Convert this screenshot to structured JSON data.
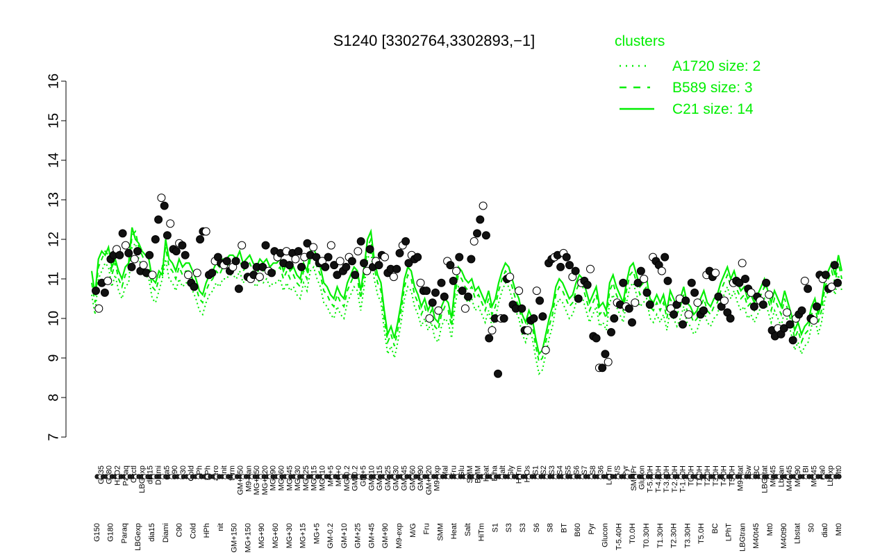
{
  "chart_data": {
    "type": "line",
    "title": "S1240 [3302764,3302893,−1]",
    "xlabel": "",
    "ylabel": "",
    "ylim": [
      7,
      16
    ],
    "yticks": [
      7,
      8,
      9,
      10,
      11,
      12,
      13,
      14,
      15,
      16
    ],
    "grid": false,
    "legend": {
      "title": "clusters",
      "placement": "top-right",
      "color": "#00ee00",
      "entries": [
        {
          "label": "A1720 size: 2",
          "style": "dotted"
        },
        {
          "label": "B589 size: 3",
          "style": "dashed"
        },
        {
          "label": "C21 size: 14",
          "style": "solid"
        }
      ]
    },
    "x_labels_upper": [
      "G135",
      "G180",
      "H2O2",
      "Paraq",
      "Oxctl",
      "LBGexp",
      "dia15",
      "Diami",
      "dia5",
      "C90",
      "C30",
      "Cold",
      "LPh",
      "HPh",
      "aero",
      "nit",
      "ferm",
      "GM+150",
      "M9-tran",
      "MG+150",
      "MG+120",
      "MG+90",
      "MG+60",
      "MG+45",
      "MG+30",
      "MG+25",
      "MG+15",
      "MG+10",
      "MG+5",
      "MG+0",
      "MG-0.2",
      "GM-0.2",
      "GM+5",
      "GM+10",
      "GM+15",
      "GM+25",
      "GM+30",
      "GM+45",
      "GM+60",
      "GM+90",
      "GM+120",
      "M9-exp",
      "Mal",
      "Fru",
      "Glu",
      "SMM",
      "BMM",
      "Heat",
      "Etha",
      "Salt",
      "Gly",
      "HiTm",
      "HiOs",
      "S1",
      "S2",
      "S3",
      "S4",
      "S5",
      "S6",
      "S7",
      "S8",
      "B36",
      "LoTm",
      "G/S",
      "Pyr",
      "SMMPr",
      "Glucon",
      "T-5.40H",
      "T-4.40H",
      "T-3.40H",
      "T-2.40H",
      "T-1.40H",
      "T0.0H",
      "T1.0H",
      "T2.0H",
      "T3.0H",
      "T4.0H",
      "T5.0H",
      "M9-stat",
      "Sw",
      "BC",
      "LBGstat",
      "M0t45",
      "Lbtran",
      "M40t45",
      "M0t90",
      "BI",
      "M0t45",
      "dia0",
      "Lbexp",
      "Mt0"
    ],
    "x_labels_lower": [
      "G150",
      "G180",
      "Paraq",
      "LBGexp",
      "dia15",
      "Diami",
      "C90",
      "Cold",
      "HPh",
      "nit",
      "GM+150",
      "MG+150",
      "MG+90",
      "MG+60",
      "MG+30",
      "MG+15",
      "MG+5",
      "GM-0.2",
      "GM+10",
      "GM+25",
      "GM+45",
      "GM+90",
      "M9-exp",
      "M/G",
      "Fru",
      "SMM",
      "Heat",
      "Salt",
      "HiTm",
      "S1",
      "S3",
      "S3",
      "S6",
      "S8",
      "BT",
      "B60",
      "Pyr",
      "Glucon",
      "T-5.40H",
      "T0.0H",
      "T0.30H",
      "T1.30H",
      "T2.30H",
      "T3.30H",
      "T5.0H",
      "BC",
      "LPhT",
      "LBGtran",
      "M40t45",
      "Mt0",
      "M40t90",
      "Lbstat",
      "S0",
      "dia0",
      "Mt0"
    ],
    "series": [
      {
        "style": "solid",
        "values": [
          11.2,
          10.6,
          11.5,
          11.7,
          11.6,
          11.8,
          11.3,
          11.5,
          11.2,
          11.0,
          11.3,
          11.4,
          12.3,
          12.0,
          11.9,
          11.7,
          11.6,
          11.5,
          11.0,
          10.9,
          11.2,
          11.1,
          12.0,
          11.5,
          11.4,
          11.2,
          11.5,
          11.3,
          11.4,
          11.4,
          11.2,
          11.0,
          10.7,
          10.6,
          10.9,
          11.1,
          11.2,
          11.4,
          11.3,
          11.5,
          11.5,
          11.6,
          11.6,
          11.5,
          11.7,
          11.4,
          11.5,
          11.6,
          11.4,
          11.3,
          11.5,
          11.4,
          11.5,
          11.3,
          11.4,
          11.4,
          11.5,
          11.2,
          11.4,
          11.2,
          11.3,
          11.1,
          11.0,
          11.4,
          11.2,
          11.7,
          11.8,
          11.5,
          11.3,
          10.9,
          10.8,
          10.6,
          10.5,
          10.8,
          10.6,
          10.5,
          10.9,
          11.1,
          11.3,
          11.2,
          10.7,
          11.3,
          12.0,
          12.2,
          11.5,
          11.1,
          10.9,
          10.2,
          9.6,
          9.8,
          9.5,
          9.9,
          10.4,
          11.0,
          11.3,
          11.2,
          10.8,
          10.6,
          10.3,
          10.5,
          10.2,
          10.4,
          10.0,
          9.9,
          10.3,
          10.5,
          10.4,
          10.0,
          10.8,
          11.3,
          11.2,
          11.0,
          10.9,
          11.0,
          10.7,
          10.8,
          10.6,
          10.4,
          10.7,
          10.3,
          10.5,
          10.9,
          11.2,
          11.4,
          11.3,
          11.0,
          10.7,
          10.5,
          10.1,
          9.9,
          10.2,
          10.0,
          9.5,
          9.1,
          9.2,
          9.6,
          10.0,
          10.3,
          10.8,
          11.0,
          10.9,
          10.7,
          10.5,
          10.6,
          10.9,
          11.1,
          11.0,
          10.7,
          10.4,
          10.6,
          10.8,
          10.3,
          10.4,
          10.2,
          10.9,
          11.1,
          10.8,
          10.6,
          10.4,
          10.9,
          11.3,
          11.4,
          11.1,
          10.8,
          10.9,
          11.0,
          10.5,
          10.4,
          10.6,
          10.4,
          10.6,
          10.2,
          10.7,
          10.5,
          10.3,
          10.5,
          10.8,
          10.4,
          10.3,
          10.1,
          10.2,
          10.5,
          10.7,
          10.4,
          10.3,
          10.5,
          10.6,
          10.9,
          11.1,
          11.3,
          11.0,
          11.2,
          10.9,
          10.7,
          10.8,
          10.5,
          10.6,
          10.4,
          10.6,
          10.8,
          11.0,
          10.7,
          10.4,
          10.7,
          10.5,
          10.3,
          10.7,
          10.4,
          10.1,
          9.7,
          9.9,
          9.6,
          9.8,
          9.9,
          10.3,
          10.5,
          10.1,
          10.4,
          11.0,
          11.2,
          11.4,
          11.1,
          11.6,
          11.2
        ]
      },
      {
        "style": "dashed",
        "values": [
          10.9,
          10.4,
          11.3,
          11.5,
          11.7,
          11.6,
          11.1,
          11.4,
          11.0,
          10.8,
          11.1,
          11.2,
          12.1,
          12.2,
          11.8,
          11.6,
          11.4,
          11.3,
          10.8,
          10.7,
          11.0,
          11.3,
          11.8,
          11.3,
          11.2,
          11.0,
          11.3,
          11.1,
          11.2,
          11.2,
          11.0,
          10.8,
          10.5,
          10.4,
          10.7,
          10.9,
          11.0,
          11.2,
          11.1,
          11.3,
          11.3,
          11.4,
          11.4,
          11.3,
          11.5,
          11.2,
          11.3,
          11.4,
          11.2,
          11.1,
          11.3,
          11.2,
          11.3,
          11.1,
          11.2,
          11.2,
          11.3,
          11.0,
          11.2,
          11.0,
          11.1,
          10.9,
          10.8,
          11.2,
          11.0,
          11.5,
          11.6,
          11.3,
          11.1,
          10.7,
          10.6,
          10.4,
          10.3,
          10.6,
          10.4,
          10.3,
          10.7,
          10.9,
          11.1,
          11.0,
          10.5,
          11.1,
          11.8,
          12.0,
          11.3,
          10.9,
          10.7,
          10.0,
          9.4,
          9.6,
          9.3,
          9.7,
          10.2,
          10.8,
          11.1,
          11.0,
          10.6,
          10.4,
          10.1,
          10.3,
          10.0,
          10.2,
          9.8,
          9.7,
          10.1,
          10.3,
          10.2,
          9.8,
          10.6,
          11.1,
          11.0,
          10.8,
          10.7,
          10.8,
          10.5,
          10.6,
          10.4,
          10.2,
          10.5,
          10.1,
          10.3,
          10.7,
          11.0,
          11.2,
          11.1,
          10.8,
          10.5,
          10.3,
          9.9,
          9.7,
          10.0,
          9.8,
          9.3,
          8.9,
          9.0,
          9.4,
          9.8,
          10.1,
          10.6,
          10.8,
          10.7,
          10.5,
          10.3,
          10.4,
          10.7,
          10.9,
          10.8,
          10.5,
          10.2,
          10.4,
          10.6,
          10.1,
          10.2,
          10.0,
          10.7,
          10.9,
          10.6,
          10.4,
          10.2,
          10.7,
          11.1,
          11.2,
          10.9,
          10.6,
          10.7,
          10.8,
          10.3,
          10.2,
          10.4,
          10.2,
          10.4,
          10.0,
          10.5,
          10.3,
          10.1,
          10.3,
          10.6,
          10.2,
          10.1,
          9.9,
          10.0,
          10.3,
          10.5,
          10.2,
          10.1,
          10.3,
          10.4,
          10.7,
          10.9,
          11.1,
          10.8,
          11.0,
          10.7,
          10.5,
          10.6,
          10.3,
          10.4,
          10.2,
          10.4,
          10.6,
          10.8,
          10.5,
          10.2,
          10.5,
          10.3,
          10.1,
          10.5,
          10.2,
          9.9,
          9.5,
          9.7,
          9.4,
          9.6,
          9.7,
          10.1,
          10.3,
          9.9,
          10.2,
          10.8,
          11.0,
          11.2,
          10.9,
          11.4,
          11.0
        ]
      },
      {
        "style": "dotted",
        "values": [
          10.6,
          10.1,
          11.0,
          11.2,
          11.4,
          11.3,
          10.8,
          11.1,
          10.7,
          10.5,
          10.8,
          10.9,
          11.8,
          11.9,
          11.5,
          11.3,
          11.1,
          11.0,
          10.5,
          10.4,
          10.7,
          11.0,
          11.5,
          11.0,
          10.9,
          10.7,
          11.0,
          10.8,
          10.9,
          10.9,
          10.7,
          10.5,
          10.2,
          10.1,
          10.4,
          10.6,
          10.7,
          10.9,
          10.8,
          11.0,
          11.0,
          11.1,
          11.1,
          11.0,
          11.2,
          10.9,
          11.0,
          11.1,
          10.9,
          10.8,
          11.0,
          10.9,
          11.0,
          10.8,
          10.9,
          10.9,
          11.0,
          10.7,
          10.9,
          10.7,
          10.8,
          10.6,
          10.5,
          10.9,
          10.7,
          11.2,
          11.3,
          11.0,
          10.8,
          10.4,
          10.3,
          10.1,
          10.0,
          10.3,
          10.1,
          10.0,
          10.4,
          10.6,
          10.8,
          10.7,
          10.2,
          10.8,
          11.5,
          11.7,
          11.0,
          10.6,
          10.4,
          9.7,
          9.1,
          9.3,
          9.0,
          9.4,
          9.9,
          10.5,
          10.8,
          10.7,
          10.3,
          10.1,
          9.8,
          10.0,
          9.7,
          9.9,
          9.5,
          9.4,
          9.8,
          10.0,
          9.9,
          9.5,
          10.3,
          10.8,
          10.7,
          10.5,
          10.4,
          10.5,
          10.2,
          10.3,
          10.1,
          9.9,
          10.2,
          9.8,
          10.0,
          10.4,
          10.7,
          10.9,
          10.8,
          10.5,
          10.2,
          10.0,
          9.6,
          9.4,
          9.7,
          9.5,
          9.0,
          8.6,
          8.7,
          9.1,
          9.5,
          9.8,
          10.3,
          10.5,
          10.4,
          10.2,
          10.0,
          10.1,
          10.4,
          10.6,
          10.5,
          10.2,
          9.9,
          10.1,
          10.3,
          9.8,
          9.9,
          9.7,
          10.4,
          10.6,
          10.3,
          10.1,
          9.9,
          10.4,
          10.8,
          10.9,
          10.6,
          10.3,
          10.4,
          10.5,
          10.0,
          9.9,
          10.1,
          9.9,
          10.1,
          9.7,
          10.2,
          10.0,
          9.8,
          10.0,
          10.3,
          9.9,
          9.8,
          9.6,
          9.7,
          10.0,
          10.2,
          9.9,
          9.8,
          10.0,
          10.1,
          10.4,
          10.6,
          10.8,
          10.5,
          10.7,
          10.4,
          10.2,
          10.3,
          10.0,
          10.1,
          9.9,
          10.1,
          10.3,
          10.5,
          10.2,
          9.9,
          10.2,
          10.0,
          9.8,
          10.2,
          9.9,
          9.6,
          9.2,
          9.4,
          9.1,
          9.3,
          9.4,
          9.8,
          10.0,
          9.6,
          9.9,
          10.5,
          10.7,
          10.9,
          10.6,
          11.1,
          10.7
        ]
      }
    ],
    "points": [
      10.7,
      10.25,
      10.9,
      10.65,
      10.95,
      11.5,
      11.6,
      11.75,
      11.6,
      12.15,
      11.85,
      11.65,
      11.3,
      11.5,
      11.7,
      11.2,
      11.35,
      11.15,
      11.6,
      11.1,
      12.0,
      12.5,
      13.05,
      12.85,
      12.1,
      12.4,
      11.75,
      11.7,
      11.9,
      11.85,
      11.6,
      11.1,
      10.9,
      10.8,
      11.15,
      12.0,
      12.2,
      12.2,
      11.1,
      11.15,
      11.45,
      11.55,
      11.4,
      11.35,
      11.45,
      11.2,
      11.3,
      11.45,
      10.75,
      11.85,
      11.35,
      11.05,
      11.0,
      11.1,
      11.3,
      11.05,
      11.3,
      11.85,
      11.2,
      11.15,
      11.7,
      11.55,
      11.65,
      11.4,
      11.7,
      11.35,
      11.65,
      11.5,
      11.7,
      11.3,
      11.55,
      11.9,
      11.6,
      11.8,
      11.55,
      11.4,
      11.45,
      11.3,
      11.55,
      11.85,
      11.35,
      11.1,
      11.45,
      11.2,
      11.3,
      11.55,
      11.45,
      11.1,
      11.7,
      11.95,
      11.4,
      11.2,
      11.75,
      11.3,
      11.45,
      11.35,
      11.6,
      11.55,
      11.15,
      11.25,
      11.05,
      11.25,
      11.65,
      11.85,
      11.95,
      11.4,
      11.6,
      11.5,
      11.55,
      10.9,
      10.7,
      10.7,
      10.0,
      10.4,
      10.65,
      10.2,
      10.9,
      10.55,
      11.45,
      11.35,
      10.95,
      11.2,
      11.55,
      10.7,
      10.25,
      10.55,
      11.5,
      11.95,
      12.15,
      12.5,
      12.85,
      12.1,
      9.5,
      9.7,
      10.0,
      8.6,
      10.0,
      10.0,
      11.0,
      11.05,
      10.35,
      10.25,
      10.7,
      10.25,
      9.7,
      9.7,
      9.95,
      10.0,
      10.7,
      10.45,
      10.05,
      9.2,
      11.4,
      11.5,
      11.55,
      11.6,
      11.3,
      11.65,
      11.55,
      11.35,
      11.05,
      11.2,
      10.5,
      10.9,
      10.95,
      10.85,
      11.25,
      9.55,
      9.5,
      8.75,
      8.75,
      9.1,
      8.9,
      9.65,
      10.0,
      10.4,
      10.35,
      10.9,
      10.3,
      10.25,
      9.9,
      10.4,
      10.9,
      11.2,
      11.0,
      10.65,
      10.35,
      11.55,
      11.45,
      11.35,
      11.2,
      11.55,
      10.95,
      10.25,
      10.1,
      10.35,
      10.5,
      9.85,
      10.45,
      10.1,
      10.9,
      10.65,
      10.4,
      10.1,
      10.2,
      11.1,
      11.2,
      11.05,
      11.15,
      10.55,
      10.3,
      10.45,
      10.15,
      10.0,
      10.9,
      10.95,
      10.9,
      11.4,
      11.0,
      10.75,
      10.65,
      10.3,
      10.55,
      10.45,
      10.35,
      10.9,
      10.6,
      9.7,
      9.55,
      9.75,
      9.6,
      9.75,
      10.15,
      9.85,
      9.45,
      10.0,
      10.1,
      10.2,
      10.95,
      10.75,
      10.0,
      9.95,
      10.3,
      11.1,
      11.0,
      11.1,
      10.75,
      10.8,
      11.35,
      10.9
    ]
  }
}
